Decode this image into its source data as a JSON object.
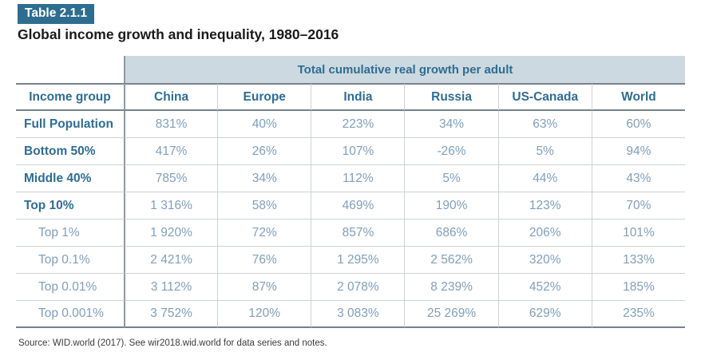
{
  "badge": "Table 2.1.1",
  "title": "Global income growth and inequality, 1980–2016",
  "source": "Source: WID.world (2017). See wir2018.wid.world for data series and notes.",
  "colors": {
    "accent_teal": "#2e6d90",
    "band_background": "#cdd9e0",
    "value_text": "#7f9fba",
    "dark_rule": "#76828c",
    "light_rule": "#cdd2d6",
    "column_divider": "#8d9aa5",
    "title_text": "#1a1a1a",
    "source_text": "#3b3b3b"
  },
  "chart_data": {
    "type": "table",
    "title": "Global income growth and inequality, 1980–2016",
    "column_group_header": "Total cumulative real growth per adult",
    "columns": [
      "Income group",
      "China",
      "Europe",
      "India",
      "Russia",
      "US-Canada",
      "World"
    ],
    "rows": [
      {
        "label": "Full Population",
        "bold": true,
        "values": [
          "831%",
          "40%",
          "223%",
          "34%",
          "63%",
          "60%"
        ]
      },
      {
        "label": "Bottom 50%",
        "bold": true,
        "values": [
          "417%",
          "26%",
          "107%",
          "-26%",
          "5%",
          "94%"
        ]
      },
      {
        "label": "Middle 40%",
        "bold": true,
        "values": [
          "785%",
          "34%",
          "112%",
          "5%",
          "44%",
          "43%"
        ]
      },
      {
        "label": "Top 10%",
        "bold": true,
        "values": [
          "1 316%",
          "58%",
          "469%",
          "190%",
          "123%",
          "70%"
        ]
      },
      {
        "label": "Top 1%",
        "bold": false,
        "values": [
          "1 920%",
          "72%",
          "857%",
          "686%",
          "206%",
          "101%"
        ]
      },
      {
        "label": "Top 0.1%",
        "bold": false,
        "values": [
          "2 421%",
          "76%",
          "1 295%",
          "2 562%",
          "320%",
          "133%"
        ]
      },
      {
        "label": "Top 0.01%",
        "bold": false,
        "values": [
          "3 112%",
          "87%",
          "2 078%",
          "8 239%",
          "452%",
          "185%"
        ]
      },
      {
        "label": "Top 0.001%",
        "bold": false,
        "values": [
          "3 752%",
          "120%",
          "3 083%",
          "25 269%",
          "629%",
          "235%"
        ]
      }
    ]
  }
}
